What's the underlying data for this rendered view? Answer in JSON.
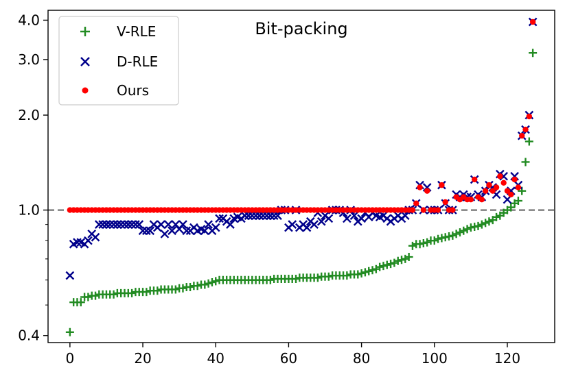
{
  "chart_data": {
    "type": "scatter",
    "title": "Bit-packing",
    "xlabel": "",
    "ylabel": "",
    "xlim": [
      -6,
      133
    ],
    "ylim": [
      0.38,
      4.3
    ],
    "yscale": "log",
    "xticks": [
      0,
      20,
      40,
      60,
      80,
      100,
      120
    ],
    "yticks": [
      0.4,
      1.0,
      2.0,
      3.0,
      4.0
    ],
    "ytick_labels": [
      "0.4",
      "1.0",
      "2.0",
      "3.0",
      "4.0"
    ],
    "reference_line": {
      "y": 1.0,
      "style": "dashed",
      "color": "#808080"
    },
    "legend_position": "top-left",
    "colors": {
      "v_rle": "#228b22",
      "d_rle": "#00008b",
      "ours": "#ff0000"
    },
    "series": [
      {
        "name": "V-RLE",
        "marker": "plus",
        "color": "#228b22",
        "x": [
          0,
          1,
          2,
          3,
          4,
          5,
          6,
          7,
          8,
          9,
          10,
          11,
          12,
          13,
          14,
          15,
          16,
          17,
          18,
          19,
          20,
          21,
          22,
          23,
          24,
          25,
          26,
          27,
          28,
          29,
          30,
          31,
          32,
          33,
          34,
          35,
          36,
          37,
          38,
          39,
          40,
          41,
          42,
          43,
          44,
          45,
          46,
          47,
          48,
          49,
          50,
          51,
          52,
          53,
          54,
          55,
          56,
          57,
          58,
          59,
          60,
          61,
          62,
          63,
          64,
          65,
          66,
          67,
          68,
          69,
          70,
          71,
          72,
          73,
          74,
          75,
          76,
          77,
          78,
          79,
          80,
          81,
          82,
          83,
          84,
          85,
          86,
          87,
          88,
          89,
          90,
          91,
          92,
          93,
          94,
          95,
          96,
          97,
          98,
          99,
          100,
          101,
          102,
          103,
          104,
          105,
          106,
          107,
          108,
          109,
          110,
          111,
          112,
          113,
          114,
          115,
          116,
          117,
          118,
          119,
          120,
          121,
          122,
          123,
          124,
          125,
          126,
          127
        ],
        "values": [
          0.41,
          0.51,
          0.51,
          0.51,
          0.53,
          0.53,
          0.535,
          0.535,
          0.54,
          0.54,
          0.54,
          0.54,
          0.54,
          0.545,
          0.545,
          0.545,
          0.545,
          0.545,
          0.55,
          0.55,
          0.55,
          0.55,
          0.555,
          0.555,
          0.555,
          0.56,
          0.56,
          0.56,
          0.56,
          0.56,
          0.565,
          0.565,
          0.57,
          0.57,
          0.575,
          0.575,
          0.58,
          0.58,
          0.585,
          0.59,
          0.595,
          0.6,
          0.6,
          0.6,
          0.6,
          0.6,
          0.6,
          0.6,
          0.6,
          0.6,
          0.6,
          0.6,
          0.6,
          0.6,
          0.6,
          0.6,
          0.605,
          0.605,
          0.605,
          0.605,
          0.605,
          0.605,
          0.605,
          0.61,
          0.61,
          0.61,
          0.61,
          0.61,
          0.61,
          0.615,
          0.615,
          0.615,
          0.62,
          0.62,
          0.62,
          0.62,
          0.62,
          0.625,
          0.625,
          0.625,
          0.63,
          0.635,
          0.64,
          0.645,
          0.65,
          0.66,
          0.665,
          0.67,
          0.675,
          0.68,
          0.69,
          0.695,
          0.7,
          0.71,
          0.77,
          0.78,
          0.78,
          0.785,
          0.79,
          0.8,
          0.8,
          0.81,
          0.815,
          0.82,
          0.825,
          0.83,
          0.84,
          0.85,
          0.86,
          0.87,
          0.88,
          0.885,
          0.89,
          0.9,
          0.91,
          0.92,
          0.93,
          0.95,
          0.96,
          0.98,
          1.0,
          1.02,
          1.05,
          1.07,
          1.15,
          1.42,
          1.65,
          3.15
        ]
      },
      {
        "name": "D-RLE",
        "marker": "x",
        "color": "#00008b",
        "x": [
          0,
          1,
          2,
          3,
          4,
          5,
          6,
          7,
          8,
          9,
          10,
          11,
          12,
          13,
          14,
          15,
          16,
          17,
          18,
          19,
          20,
          21,
          22,
          23,
          24,
          25,
          26,
          27,
          28,
          29,
          30,
          31,
          32,
          33,
          34,
          35,
          36,
          37,
          38,
          39,
          40,
          41,
          42,
          43,
          44,
          45,
          46,
          47,
          48,
          49,
          50,
          51,
          52,
          53,
          54,
          55,
          56,
          57,
          58,
          59,
          60,
          61,
          62,
          63,
          64,
          65,
          66,
          67,
          68,
          69,
          70,
          71,
          72,
          73,
          74,
          75,
          76,
          77,
          78,
          79,
          80,
          81,
          82,
          83,
          84,
          85,
          86,
          87,
          88,
          89,
          90,
          91,
          92,
          93,
          94,
          95,
          96,
          97,
          98,
          99,
          100,
          101,
          102,
          103,
          104,
          105,
          106,
          107,
          108,
          109,
          110,
          111,
          112,
          113,
          114,
          115,
          116,
          117,
          118,
          119,
          120,
          121,
          122,
          123,
          124,
          125,
          126,
          127
        ],
        "values": [
          0.62,
          0.78,
          0.79,
          0.79,
          0.78,
          0.8,
          0.84,
          0.82,
          0.9,
          0.9,
          0.9,
          0.9,
          0.9,
          0.9,
          0.9,
          0.9,
          0.9,
          0.9,
          0.9,
          0.9,
          0.86,
          0.86,
          0.86,
          0.9,
          0.88,
          0.9,
          0.84,
          0.9,
          0.86,
          0.9,
          0.87,
          0.9,
          0.86,
          0.86,
          0.88,
          0.86,
          0.87,
          0.86,
          0.9,
          0.86,
          0.88,
          0.94,
          0.94,
          0.92,
          0.9,
          0.94,
          0.95,
          0.94,
          0.96,
          0.96,
          0.96,
          0.96,
          0.96,
          0.96,
          0.96,
          0.96,
          0.96,
          0.96,
          1.0,
          1.0,
          0.88,
          0.9,
          1.0,
          0.88,
          0.9,
          0.88,
          0.92,
          0.9,
          0.98,
          0.92,
          0.96,
          0.94,
          1.0,
          1.0,
          1.0,
          0.98,
          0.94,
          1.0,
          0.96,
          0.92,
          0.94,
          0.98,
          0.95,
          0.98,
          0.96,
          0.95,
          0.96,
          0.94,
          0.92,
          0.94,
          0.96,
          0.94,
          0.96,
          1.0,
          1.0,
          1.05,
          1.2,
          1.0,
          1.18,
          1.0,
          1.0,
          1.0,
          1.2,
          1.05,
          1.0,
          1.0,
          1.12,
          1.1,
          1.12,
          1.1,
          1.1,
          1.25,
          1.12,
          1.1,
          1.15,
          1.2,
          1.18,
          1.12,
          1.3,
          1.28,
          1.08,
          1.15,
          1.28,
          1.2,
          1.72,
          1.8,
          2.0,
          3.95
        ]
      },
      {
        "name": "Ours",
        "marker": "dot",
        "color": "#ff0000",
        "x": [
          0,
          1,
          2,
          3,
          4,
          5,
          6,
          7,
          8,
          9,
          10,
          11,
          12,
          13,
          14,
          15,
          16,
          17,
          18,
          19,
          20,
          21,
          22,
          23,
          24,
          25,
          26,
          27,
          28,
          29,
          30,
          31,
          32,
          33,
          34,
          35,
          36,
          37,
          38,
          39,
          40,
          41,
          42,
          43,
          44,
          45,
          46,
          47,
          48,
          49,
          50,
          51,
          52,
          53,
          54,
          55,
          56,
          57,
          58,
          59,
          60,
          61,
          62,
          63,
          64,
          65,
          66,
          67,
          68,
          69,
          70,
          71,
          72,
          73,
          74,
          75,
          76,
          77,
          78,
          79,
          80,
          81,
          82,
          83,
          84,
          85,
          86,
          87,
          88,
          89,
          90,
          91,
          92,
          93,
          94,
          95,
          96,
          97,
          98,
          99,
          100,
          101,
          102,
          103,
          104,
          105,
          106,
          107,
          108,
          109,
          110,
          111,
          112,
          113,
          114,
          115,
          116,
          117,
          118,
          119,
          120,
          121,
          122,
          123,
          124,
          125,
          126,
          127
        ],
        "values": [
          1,
          1,
          1,
          1,
          1,
          1,
          1,
          1,
          1,
          1,
          1,
          1,
          1,
          1,
          1,
          1,
          1,
          1,
          1,
          1,
          1,
          1,
          1,
          1,
          1,
          1,
          1,
          1,
          1,
          1,
          1,
          1,
          1,
          1,
          1,
          1,
          1,
          1,
          1,
          1,
          1,
          1,
          1,
          1,
          1,
          1,
          1,
          1,
          1,
          1,
          1,
          1,
          1,
          1,
          1,
          1,
          1,
          1,
          1,
          1,
          1,
          1,
          1,
          1,
          1,
          1,
          1,
          1,
          1,
          1,
          1,
          1,
          1,
          1,
          1,
          1,
          1,
          1,
          1,
          1,
          1,
          1,
          1,
          1,
          1,
          1,
          1,
          1,
          1,
          1,
          1,
          1,
          1,
          1,
          1,
          1.05,
          1.18,
          1.0,
          1.15,
          1.0,
          1.0,
          1.0,
          1.2,
          1.06,
          1.0,
          1.0,
          1.1,
          1.08,
          1.1,
          1.08,
          1.08,
          1.25,
          1.1,
          1.08,
          1.15,
          1.2,
          1.15,
          1.18,
          1.28,
          1.22,
          1.15,
          1.12,
          1.25,
          1.18,
          1.72,
          1.8,
          1.98,
          3.95
        ]
      }
    ]
  }
}
